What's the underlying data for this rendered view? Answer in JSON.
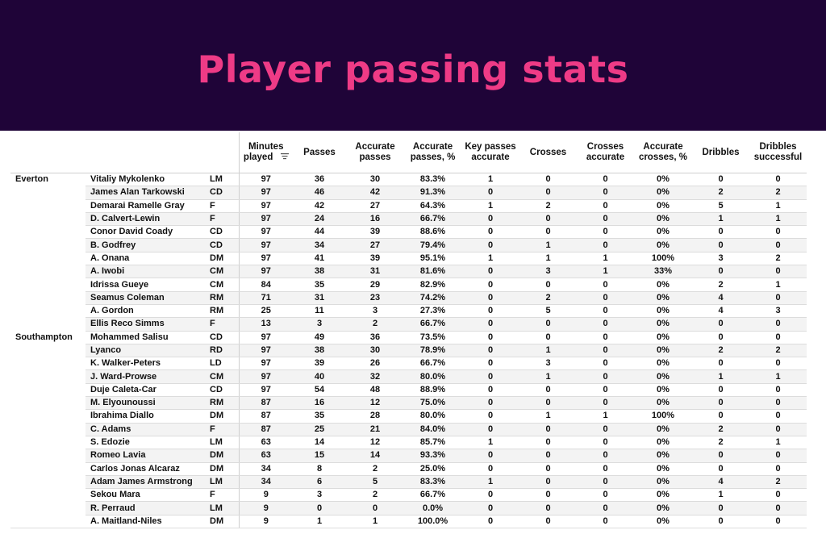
{
  "title": "Player passing stats",
  "table": {
    "columns": [
      "Minutes played",
      "Passes",
      "Accurate passes",
      "Accurate passes, %",
      "Key passes accurate",
      "Crosses",
      "Crosses accurate",
      "Accurate crosses, %",
      "Dribbles",
      "Dribbles successful"
    ],
    "teams": [
      {
        "name": "Everton",
        "rows": [
          [
            "Vitaliy Mykolenko",
            "LM",
            "97",
            "36",
            "30",
            "83.3%",
            "1",
            "0",
            "0",
            "0%",
            "0",
            "0"
          ],
          [
            "James Alan Tarkowski",
            "CD",
            "97",
            "46",
            "42",
            "91.3%",
            "0",
            "0",
            "0",
            "0%",
            "2",
            "2"
          ],
          [
            "Demarai Ramelle Gray",
            "F",
            "97",
            "42",
            "27",
            "64.3%",
            "1",
            "2",
            "0",
            "0%",
            "5",
            "1"
          ],
          [
            "D. Calvert-Lewin",
            "F",
            "97",
            "24",
            "16",
            "66.7%",
            "0",
            "0",
            "0",
            "0%",
            "1",
            "1"
          ],
          [
            "Conor David Coady",
            "CD",
            "97",
            "44",
            "39",
            "88.6%",
            "0",
            "0",
            "0",
            "0%",
            "0",
            "0"
          ],
          [
            "B. Godfrey",
            "CD",
            "97",
            "34",
            "27",
            "79.4%",
            "0",
            "1",
            "0",
            "0%",
            "0",
            "0"
          ],
          [
            "A. Onana",
            "DM",
            "97",
            "41",
            "39",
            "95.1%",
            "1",
            "1",
            "1",
            "100%",
            "3",
            "2"
          ],
          [
            "A. Iwobi",
            "CM",
            "97",
            "38",
            "31",
            "81.6%",
            "0",
            "3",
            "1",
            "33%",
            "0",
            "0"
          ],
          [
            "Idrissa Gueye",
            "CM",
            "84",
            "35",
            "29",
            "82.9%",
            "0",
            "0",
            "0",
            "0%",
            "2",
            "1"
          ],
          [
            "Seamus Coleman",
            "RM",
            "71",
            "31",
            "23",
            "74.2%",
            "0",
            "2",
            "0",
            "0%",
            "4",
            "0"
          ],
          [
            "A. Gordon",
            "RM",
            "25",
            "11",
            "3",
            "27.3%",
            "0",
            "5",
            "0",
            "0%",
            "4",
            "3"
          ],
          [
            "Ellis Reco Simms",
            "F",
            "13",
            "3",
            "2",
            "66.7%",
            "0",
            "0",
            "0",
            "0%",
            "0",
            "0"
          ]
        ]
      },
      {
        "name": "Southampton",
        "rows": [
          [
            "Mohammed Salisu",
            "CD",
            "97",
            "49",
            "36",
            "73.5%",
            "0",
            "0",
            "0",
            "0%",
            "0",
            "0"
          ],
          [
            "Lyanco",
            "RD",
            "97",
            "38",
            "30",
            "78.9%",
            "0",
            "1",
            "0",
            "0%",
            "2",
            "2"
          ],
          [
            "K. Walker-Peters",
            "LD",
            "97",
            "39",
            "26",
            "66.7%",
            "0",
            "3",
            "0",
            "0%",
            "0",
            "0"
          ],
          [
            "J. Ward-Prowse",
            "CM",
            "97",
            "40",
            "32",
            "80.0%",
            "0",
            "1",
            "0",
            "0%",
            "1",
            "1"
          ],
          [
            "Duje Caleta-Car",
            "CD",
            "97",
            "54",
            "48",
            "88.9%",
            "0",
            "0",
            "0",
            "0%",
            "0",
            "0"
          ],
          [
            "M. Elyounoussi",
            "RM",
            "87",
            "16",
            "12",
            "75.0%",
            "0",
            "0",
            "0",
            "0%",
            "0",
            "0"
          ],
          [
            "Ibrahima Diallo",
            "DM",
            "87",
            "35",
            "28",
            "80.0%",
            "0",
            "1",
            "1",
            "100%",
            "0",
            "0"
          ],
          [
            "C. Adams",
            "F",
            "87",
            "25",
            "21",
            "84.0%",
            "0",
            "0",
            "0",
            "0%",
            "2",
            "0"
          ],
          [
            "S. Edozie",
            "LM",
            "63",
            "14",
            "12",
            "85.7%",
            "1",
            "0",
            "0",
            "0%",
            "2",
            "1"
          ],
          [
            "Romeo Lavia",
            "DM",
            "63",
            "15",
            "14",
            "93.3%",
            "0",
            "0",
            "0",
            "0%",
            "0",
            "0"
          ],
          [
            "Carlos Jonas Alcaraz",
            "DM",
            "34",
            "8",
            "2",
            "25.0%",
            "0",
            "0",
            "0",
            "0%",
            "0",
            "0"
          ],
          [
            "Adam James Armstrong",
            "LM",
            "34",
            "6",
            "5",
            "83.3%",
            "1",
            "0",
            "0",
            "0%",
            "4",
            "2"
          ],
          [
            "Sekou Mara",
            "F",
            "9",
            "3",
            "2",
            "66.7%",
            "0",
            "0",
            "0",
            "0%",
            "1",
            "0"
          ],
          [
            "R. Perraud",
            "LM",
            "9",
            "0",
            "0",
            "0.0%",
            "0",
            "0",
            "0",
            "0%",
            "0",
            "0"
          ],
          [
            "A. Maitland-Niles",
            "DM",
            "9",
            "1",
            "1",
            "100.0%",
            "0",
            "0",
            "0",
            "0%",
            "0",
            "0"
          ]
        ]
      }
    ]
  }
}
